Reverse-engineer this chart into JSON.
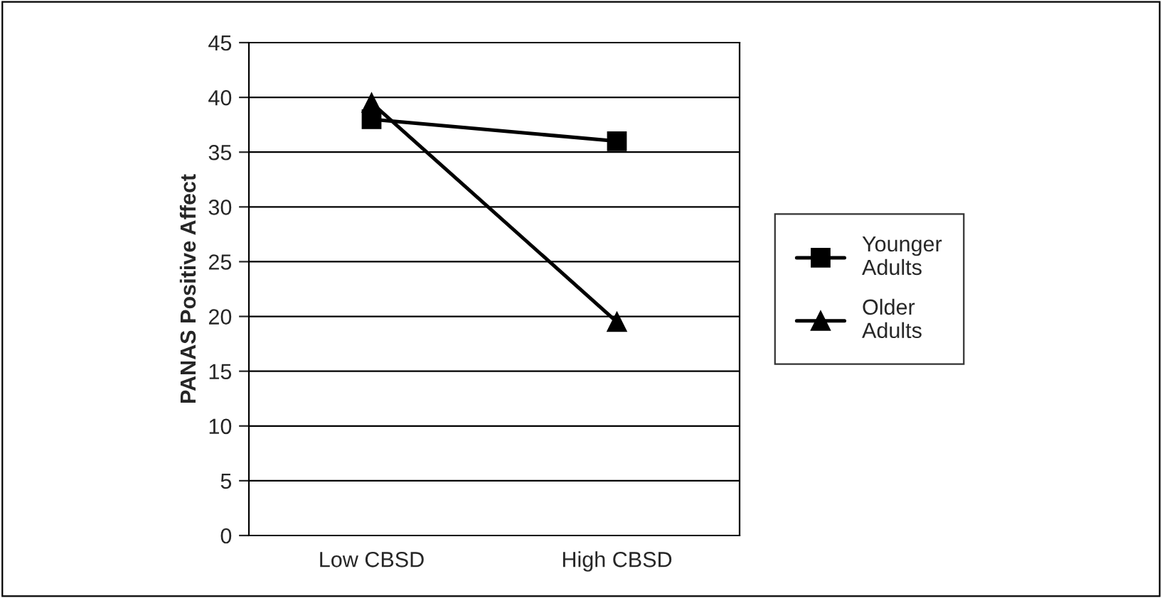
{
  "chart_data": {
    "type": "line",
    "ylabel": "PANAS Positive Affect",
    "categories": [
      "Low CBSD",
      "High CBSD"
    ],
    "series": [
      {
        "name": "Younger\nAdults",
        "color": "#000000",
        "marker": "square",
        "values": [
          38,
          36
        ]
      },
      {
        "name": "Older\nAdults",
        "color": "#000000",
        "marker": "triangle",
        "values": [
          39.5,
          19.5
        ]
      }
    ],
    "ylim": [
      0,
      45
    ],
    "yticks": [
      0,
      5,
      10,
      15,
      20,
      25,
      30,
      35,
      40,
      45
    ],
    "grid": "y",
    "legend": "right",
    "line_style": "solid"
  }
}
